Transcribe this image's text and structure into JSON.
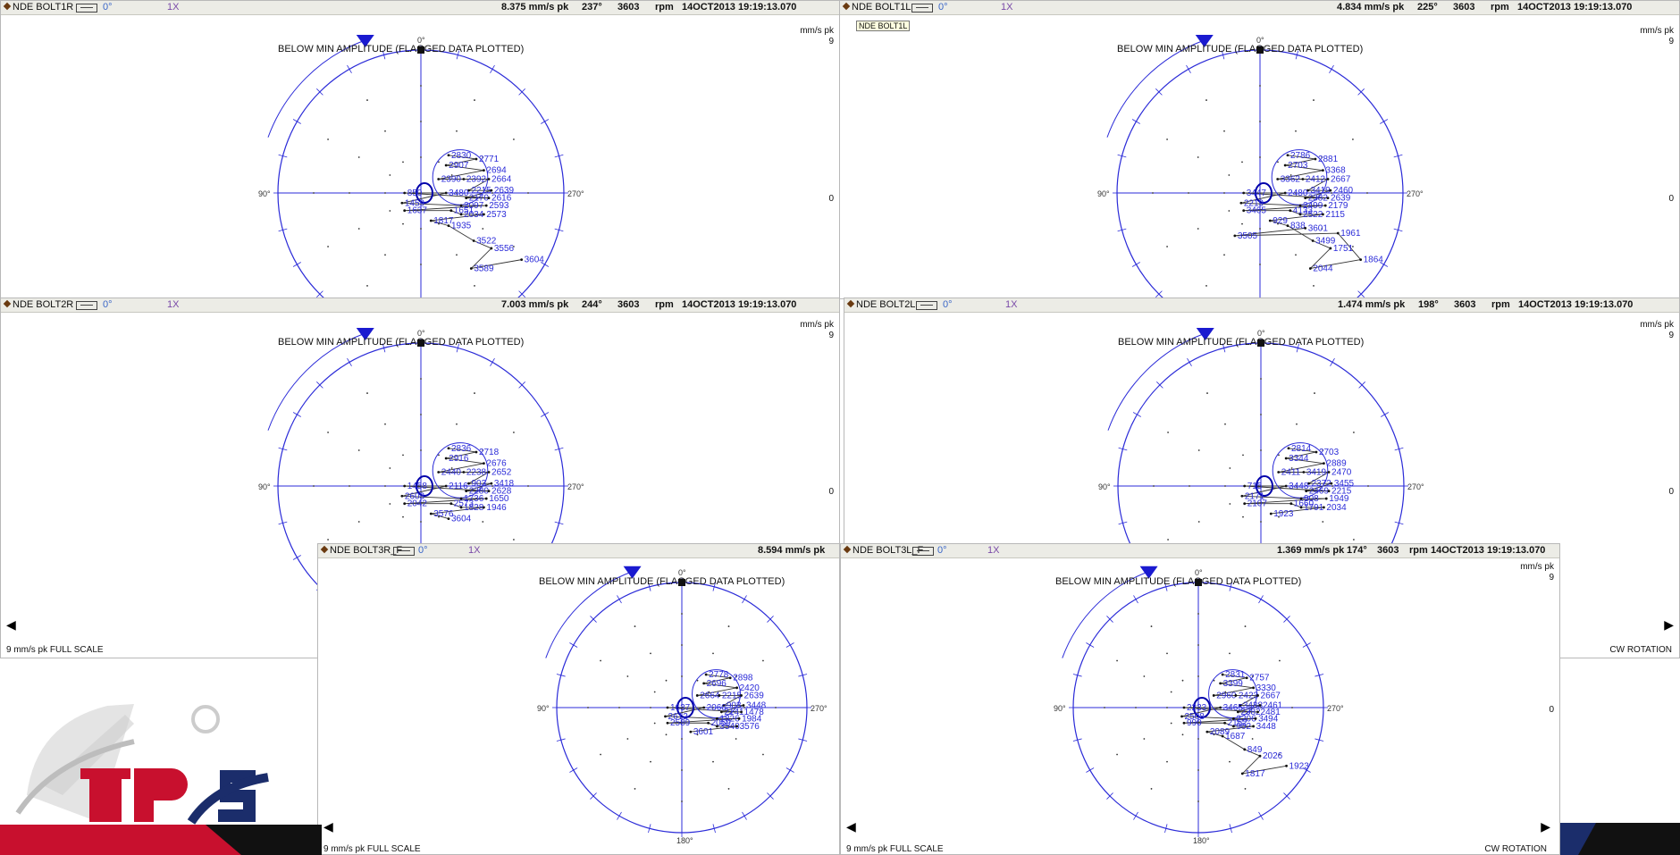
{
  "colors": {
    "accent": "#2b2bd8",
    "rotation_marker": "#1a1ad0",
    "logo_red": "#c8102e",
    "logo_navy": "#1b2d6b"
  },
  "units": "mm/s pk",
  "scale_max": "9",
  "zero": "0",
  "rpm_label": "rpm",
  "timestamp": "14OCT2013 19:19:13.070",
  "order": "1X",
  "ref_angle": "0°",
  "note": "BELOW MIN AMPLITUDE (FLAGGED DATA PLOTTED)",
  "angle_labels": {
    "top": "0°",
    "left": "90°",
    "right": "270°",
    "bottom": "180°"
  },
  "full_scale": "9 mm/s pk   FULL SCALE",
  "rotation": "CW ROTATION",
  "tooltip": "NDE BOLT1L",
  "panels": [
    {
      "name": "NDE BOLT1R",
      "amp": "8.375 mm/s pk",
      "ang": "237°",
      "rpm": "3603"
    },
    {
      "name": "NDE BOLT1L",
      "amp": "4.834 mm/s pk",
      "ang": "225°",
      "rpm": "3603"
    },
    {
      "name": "NDE BOLT2R",
      "amp": "7.003 mm/s pk",
      "ang": "244°",
      "rpm": "3603"
    },
    {
      "name": "NDE BOLT2L",
      "amp": "1.474 mm/s pk",
      "ang": "198°",
      "rpm": "3603"
    },
    {
      "name": "NDE BOLT3R_F",
      "amp": "8.594 mm/s pk",
      "ang": "",
      "rpm": ""
    },
    {
      "name": "NDE BOLT3L_F",
      "amp": "1.369 mm/s pk",
      "ang": "174°",
      "rpm": "3603"
    }
  ],
  "polar_labels": [
    [
      "2830",
      "2771",
      "2907",
      "2694",
      "2390",
      "2392",
      "2664",
      "2215",
      "2639",
      "2170",
      "2616",
      "850",
      "3480",
      "1459",
      "2097",
      "2593",
      "1637",
      "1651",
      "2034",
      "2573",
      "1817",
      "1935",
      "3522",
      "3556",
      "3589",
      "3604"
    ],
    [
      "2786",
      "2881",
      "2703",
      "3368",
      "3362",
      "2412",
      "2667",
      "3419",
      "2460",
      "2382",
      "2639",
      "3447",
      "2480",
      "2219",
      "2499",
      "2179",
      "3465",
      "4133",
      "2522",
      "2115",
      "929",
      "838",
      "3499",
      "1751",
      "2044",
      "1864",
      "1961",
      "3505",
      "3601"
    ],
    [
      "2836",
      "2718",
      "2916",
      "2676",
      "2440",
      "2238",
      "2652",
      "903",
      "3418",
      "2280",
      "2628",
      "1458",
      "2116",
      "2603",
      "1736",
      "1650",
      "2042",
      "2573",
      "1828",
      "1946",
      "3576",
      "3604"
    ],
    [
      "2814",
      "2703",
      "3344",
      "2889",
      "2411",
      "3419",
      "2470",
      "2372",
      "3455",
      "2469",
      "2215",
      "715",
      "3448",
      "2171",
      "908",
      "1949",
      "2107",
      "1660",
      "1791",
      "2034",
      "1923"
    ],
    [
      "2778",
      "2898",
      "2696",
      "2420",
      "2664",
      "2215",
      "2639",
      "903",
      "3448",
      "2141",
      "1478",
      "1637",
      "2060",
      "2612",
      "1826",
      "1984",
      "2589",
      "2059",
      "3540",
      "3576",
      "3601"
    ],
    [
      "2831",
      "2757",
      "3399",
      "3330",
      "2960",
      "2423",
      "2667",
      "3438",
      "2461",
      "2382",
      "2481",
      "2233",
      "3465",
      "2508",
      "2206",
      "3494",
      "990",
      "2152",
      "902",
      "3448",
      "2089",
      "1687",
      "849",
      "2026",
      "1817",
      "1923"
    ]
  ]
}
